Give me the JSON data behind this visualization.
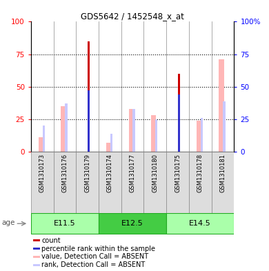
{
  "title": "GDS5642 / 1452548_x_at",
  "samples": [
    "GSM1310173",
    "GSM1310176",
    "GSM1310179",
    "GSM1310174",
    "GSM1310177",
    "GSM1310180",
    "GSM1310175",
    "GSM1310178",
    "GSM1310181"
  ],
  "age_groups": [
    {
      "label": "E11.5",
      "start": 0,
      "end": 3
    },
    {
      "label": "E12.5",
      "start": 3,
      "end": 6
    },
    {
      "label": "E14.5",
      "start": 6,
      "end": 9
    }
  ],
  "count_values": [
    0,
    0,
    85,
    0,
    0,
    0,
    60,
    0,
    0
  ],
  "percentile_rank_values": [
    0,
    0,
    47,
    0,
    0,
    0,
    44,
    0,
    0
  ],
  "value_absent": [
    11,
    35,
    0,
    7,
    33,
    28,
    0,
    24,
    71
  ],
  "rank_absent": [
    20,
    37,
    0,
    14,
    33,
    25,
    0,
    26,
    39
  ],
  "count_color": "#CC0000",
  "percentile_color": "#3333CC",
  "value_absent_color": "#FFB6B6",
  "rank_absent_color": "#C8C8FF",
  "ylim": [
    0,
    100
  ],
  "yticks": [
    0,
    25,
    50,
    75,
    100
  ],
  "bg_color": "#FFFFFF",
  "legend_items": [
    {
      "label": "count",
      "color": "#CC0000"
    },
    {
      "label": "percentile rank within the sample",
      "color": "#3333CC"
    },
    {
      "label": "value, Detection Call = ABSENT",
      "color": "#FFB6B6"
    },
    {
      "label": "rank, Detection Call = ABSENT",
      "color": "#C8C8FF"
    }
  ],
  "age_color_light": "#AAFFAA",
  "age_color_dark": "#44CC44",
  "age_border": "#22AA22",
  "col_bg": "#DDDDDD",
  "col_border": "#888888"
}
